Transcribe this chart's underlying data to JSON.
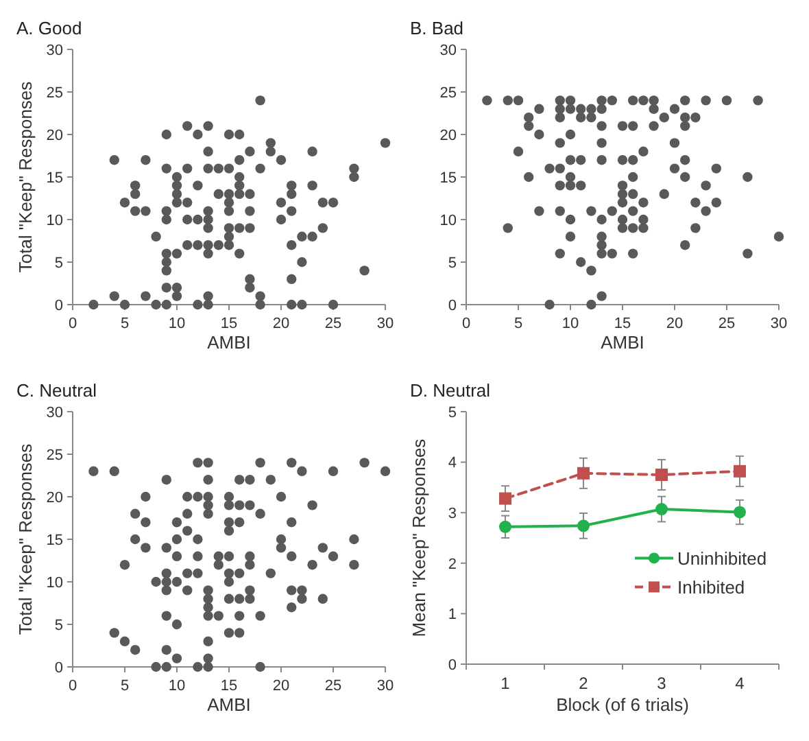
{
  "chart_data": [
    {
      "type": "scatter",
      "title": "A. Good",
      "xlabel": "AMBI",
      "ylabel": "Total \"Keep\" Responses",
      "xlim": [
        0,
        30
      ],
      "xticks": [
        0,
        5,
        10,
        15,
        20,
        25,
        30
      ],
      "ylim": [
        0,
        30
      ],
      "yticks": [
        0,
        5,
        10,
        15,
        20,
        25,
        30
      ],
      "grid": false,
      "marker": "circle",
      "series": [
        {
          "color": "#595959",
          "x": [
            2,
            4,
            4,
            5,
            5,
            6,
            6,
            6,
            7,
            7,
            7,
            8,
            8,
            9,
            9,
            9,
            9,
            9,
            9,
            9,
            9,
            9,
            10,
            10,
            10,
            10,
            10,
            10,
            10,
            11,
            11,
            11,
            11,
            11,
            12,
            12,
            12,
            12,
            12,
            13,
            13,
            13,
            13,
            13,
            13,
            13,
            13,
            13,
            13,
            14,
            14,
            14,
            15,
            15,
            15,
            15,
            15,
            15,
            15,
            15,
            16,
            16,
            16,
            16,
            16,
            16,
            16,
            17,
            17,
            17,
            17,
            17,
            17,
            18,
            18,
            18,
            18,
            19,
            19,
            20,
            20,
            20,
            21,
            21,
            21,
            21,
            21,
            21,
            22,
            22,
            22,
            23,
            23,
            23,
            24,
            24,
            25,
            25,
            27,
            27,
            28,
            30
          ],
          "values": [
            0,
            17,
            1,
            12,
            0,
            14,
            13,
            11,
            17,
            11,
            1,
            8,
            0,
            20,
            16,
            11,
            10,
            6,
            5,
            4,
            2,
            0,
            15,
            14,
            13,
            12,
            6,
            2,
            1,
            21,
            16,
            12,
            10,
            7,
            20,
            14,
            10,
            7,
            0,
            21,
            18,
            16,
            11,
            10,
            9,
            7,
            6,
            1,
            0,
            16,
            13,
            7,
            20,
            16,
            13,
            12,
            11,
            9,
            8,
            7,
            20,
            17,
            15,
            14,
            13,
            9,
            6,
            18,
            13,
            11,
            9,
            3,
            2,
            24,
            16,
            1,
            0,
            19,
            18,
            17,
            12,
            10,
            14,
            13,
            11,
            7,
            3,
            0,
            8,
            5,
            0,
            18,
            14,
            8,
            12,
            9,
            12,
            0,
            16,
            15,
            4,
            19
          ]
        }
      ]
    },
    {
      "type": "scatter",
      "title": "B. Bad",
      "xlabel": "AMBI",
      "xlim": [
        0,
        30
      ],
      "xticks": [
        0,
        5,
        10,
        15,
        20,
        25,
        30
      ],
      "ylim": [
        0,
        30
      ],
      "yticks": [
        0,
        5,
        10,
        15,
        20,
        25,
        30
      ],
      "grid": false,
      "marker": "circle",
      "series": [
        {
          "color": "#595959",
          "x": [
            2,
            4,
            4,
            5,
            5,
            6,
            6,
            6,
            7,
            7,
            7,
            8,
            8,
            9,
            9,
            9,
            9,
            9,
            9,
            9,
            9,
            10,
            10,
            10,
            10,
            10,
            10,
            10,
            10,
            11,
            11,
            11,
            11,
            11,
            12,
            12,
            12,
            12,
            12,
            13,
            13,
            13,
            13,
            13,
            13,
            13,
            13,
            13,
            13,
            14,
            14,
            14,
            15,
            15,
            15,
            15,
            15,
            15,
            15,
            16,
            16,
            16,
            16,
            16,
            16,
            16,
            16,
            17,
            17,
            17,
            17,
            17,
            18,
            18,
            18,
            19,
            19,
            20,
            20,
            20,
            21,
            21,
            21,
            21,
            21,
            21,
            22,
            22,
            22,
            23,
            23,
            23,
            24,
            24,
            25,
            27,
            27,
            28,
            30
          ],
          "values": [
            24,
            24,
            9,
            24,
            18,
            22,
            21,
            15,
            23,
            20,
            11,
            16,
            0,
            24,
            23,
            22,
            19,
            16,
            14,
            11,
            6,
            24,
            23,
            20,
            17,
            15,
            14,
            10,
            8,
            23,
            22,
            17,
            14,
            5,
            23,
            22,
            11,
            4,
            0,
            24,
            23,
            21,
            19,
            17,
            10,
            8,
            7,
            6,
            1,
            24,
            11,
            6,
            21,
            17,
            14,
            13,
            12,
            10,
            9,
            24,
            21,
            17,
            15,
            13,
            11,
            9,
            6,
            24,
            18,
            12,
            10,
            9,
            24,
            23,
            21,
            22,
            13,
            23,
            19,
            16,
            24,
            22,
            21,
            17,
            15,
            7,
            22,
            12,
            9,
            24,
            14,
            11,
            16,
            12,
            24,
            15,
            6,
            24,
            8
          ]
        }
      ]
    },
    {
      "type": "scatter",
      "title": "C. Neutral",
      "xlabel": "AMBI",
      "ylabel": "Total \"Keep\" Responses",
      "xlim": [
        0,
        30
      ],
      "xticks": [
        0,
        5,
        10,
        15,
        20,
        25,
        30
      ],
      "ylim": [
        0,
        30
      ],
      "yticks": [
        0,
        5,
        10,
        15,
        20,
        25,
        30
      ],
      "grid": false,
      "marker": "circle",
      "series": [
        {
          "color": "#595959",
          "x": [
            2,
            4,
            4,
            5,
            5,
            6,
            6,
            6,
            7,
            7,
            7,
            8,
            8,
            9,
            9,
            9,
            9,
            9,
            9,
            9,
            9,
            10,
            10,
            10,
            10,
            10,
            10,
            11,
            11,
            11,
            11,
            11,
            12,
            12,
            12,
            12,
            12,
            12,
            13,
            13,
            13,
            13,
            13,
            13,
            13,
            13,
            13,
            13,
            13,
            13,
            14,
            14,
            14,
            15,
            15,
            15,
            15,
            15,
            15,
            15,
            15,
            15,
            16,
            16,
            16,
            16,
            16,
            16,
            16,
            17,
            17,
            17,
            17,
            17,
            17,
            18,
            18,
            18,
            18,
            19,
            19,
            20,
            20,
            20,
            21,
            21,
            21,
            21,
            21,
            22,
            22,
            22,
            23,
            23,
            24,
            24,
            25,
            25,
            27,
            27,
            28,
            30
          ],
          "values": [
            23,
            23,
            4,
            12,
            3,
            18,
            15,
            2,
            20,
            17,
            14,
            10,
            0,
            22,
            14,
            11,
            10,
            9,
            6,
            2,
            0,
            17,
            15,
            13,
            10,
            5,
            1,
            20,
            18,
            16,
            11,
            9,
            24,
            20,
            15,
            13,
            11,
            0,
            24,
            22,
            20,
            19,
            18,
            9,
            8,
            7,
            6,
            3,
            1,
            0,
            13,
            12,
            6,
            20,
            19,
            17,
            16,
            13,
            11,
            10,
            8,
            4,
            22,
            19,
            17,
            11,
            8,
            6,
            4,
            22,
            19,
            13,
            12,
            9,
            8,
            24,
            18,
            6,
            0,
            22,
            11,
            20,
            15,
            14,
            24,
            17,
            13,
            9,
            7,
            23,
            9,
            8,
            19,
            12,
            14,
            8,
            23,
            13,
            15,
            12,
            24,
            23
          ]
        }
      ]
    },
    {
      "type": "line",
      "title": "D. Neutral",
      "xlabel": "Block (of 6 trials)",
      "ylabel": "Mean \"Keep\" Responses",
      "categories": [
        "1",
        "2",
        "3",
        "4"
      ],
      "ylim": [
        0,
        5
      ],
      "yticks": [
        0,
        1,
        2,
        3,
        4,
        5
      ],
      "grid": false,
      "legend": "right",
      "series": [
        {
          "name": "Uninhibited",
          "color": "#22b14c",
          "marker": "circle",
          "line_style": "solid",
          "values": [
            2.72,
            2.74,
            3.07,
            3.01
          ],
          "errors": [
            0.22,
            0.25,
            0.25,
            0.24
          ]
        },
        {
          "name": "Inhibited",
          "color": "#c0504d",
          "marker": "square",
          "line_style": "dashed",
          "values": [
            3.28,
            3.78,
            3.75,
            3.82
          ],
          "errors": [
            0.25,
            0.3,
            0.3,
            0.3
          ]
        }
      ]
    }
  ]
}
